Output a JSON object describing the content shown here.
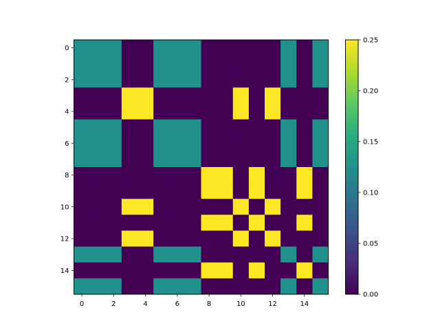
{
  "chart_data": {
    "type": "heatmap",
    "colormap": "viridis",
    "x_ticks": [
      0,
      2,
      4,
      6,
      8,
      10,
      12,
      14
    ],
    "y_ticks": [
      0,
      2,
      4,
      6,
      8,
      10,
      12,
      14
    ],
    "x_range": [
      -0.5,
      15.5
    ],
    "y_range": [
      -0.5,
      15.5
    ],
    "colorbar": {
      "range": [
        0,
        0.25
      ],
      "ticks": [
        "0.00",
        "0.05",
        "0.10",
        "0.15",
        "0.20",
        "0.25"
      ]
    },
    "matrix": [
      [
        0.125,
        0.125,
        0.125,
        0,
        0,
        0.125,
        0.125,
        0.125,
        0,
        0,
        0,
        0,
        0,
        0.125,
        0,
        0.125
      ],
      [
        0.125,
        0.125,
        0.125,
        0,
        0,
        0.125,
        0.125,
        0.125,
        0,
        0,
        0,
        0,
        0,
        0.125,
        0,
        0.125
      ],
      [
        0.125,
        0.125,
        0.125,
        0,
        0,
        0.125,
        0.125,
        0.125,
        0,
        0,
        0,
        0,
        0,
        0.125,
        0,
        0.125
      ],
      [
        0,
        0,
        0,
        0.25,
        0.25,
        0,
        0,
        0,
        0,
        0,
        0.25,
        0,
        0.25,
        0,
        0,
        0
      ],
      [
        0,
        0,
        0,
        0.25,
        0.25,
        0,
        0,
        0,
        0,
        0,
        0.25,
        0,
        0.25,
        0,
        0,
        0
      ],
      [
        0.125,
        0.125,
        0.125,
        0,
        0,
        0.125,
        0.125,
        0.125,
        0,
        0,
        0,
        0,
        0,
        0.125,
        0,
        0.125
      ],
      [
        0.125,
        0.125,
        0.125,
        0,
        0,
        0.125,
        0.125,
        0.125,
        0,
        0,
        0,
        0,
        0,
        0.125,
        0,
        0.125
      ],
      [
        0.125,
        0.125,
        0.125,
        0,
        0,
        0.125,
        0.125,
        0.125,
        0,
        0,
        0,
        0,
        0,
        0.125,
        0,
        0.125
      ],
      [
        0,
        0,
        0,
        0,
        0,
        0,
        0,
        0,
        0.25,
        0.25,
        0,
        0.25,
        0,
        0,
        0.25,
        0
      ],
      [
        0,
        0,
        0,
        0,
        0,
        0,
        0,
        0,
        0.25,
        0.25,
        0,
        0.25,
        0,
        0,
        0.25,
        0
      ],
      [
        0,
        0,
        0,
        0.25,
        0.25,
        0,
        0,
        0,
        0,
        0,
        0.25,
        0,
        0.25,
        0,
        0,
        0
      ],
      [
        0,
        0,
        0,
        0,
        0,
        0,
        0,
        0,
        0.25,
        0.25,
        0,
        0.25,
        0,
        0,
        0.25,
        0
      ],
      [
        0,
        0,
        0,
        0.25,
        0.25,
        0,
        0,
        0,
        0,
        0,
        0.25,
        0,
        0.25,
        0,
        0,
        0
      ],
      [
        0.125,
        0.125,
        0.125,
        0,
        0,
        0.125,
        0.125,
        0.125,
        0,
        0,
        0,
        0,
        0,
        0.125,
        0,
        0.125
      ],
      [
        0,
        0,
        0,
        0,
        0,
        0,
        0,
        0,
        0.25,
        0.25,
        0,
        0.25,
        0,
        0,
        0.25,
        0
      ],
      [
        0.125,
        0.125,
        0.125,
        0,
        0,
        0.125,
        0.125,
        0.125,
        0,
        0,
        0,
        0,
        0,
        0.125,
        0,
        0.125
      ]
    ]
  }
}
